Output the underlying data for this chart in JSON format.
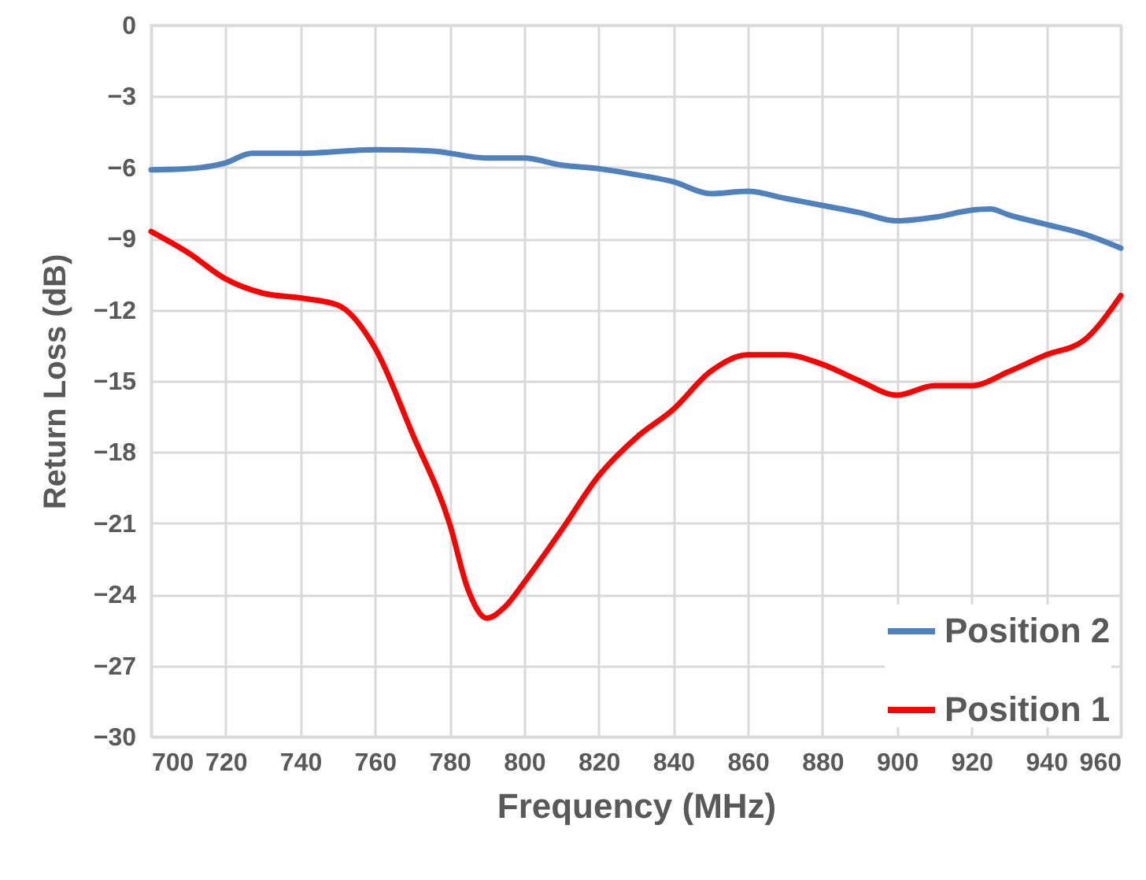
{
  "chart_data": {
    "type": "line",
    "xlabel": "Frequency (MHz)",
    "ylabel": "Return Loss (dB)",
    "xlim": [
      700,
      960
    ],
    "xticks": [
      700,
      720,
      740,
      760,
      780,
      800,
      820,
      840,
      860,
      880,
      900,
      920,
      940,
      960
    ],
    "ylim": [
      -30,
      0
    ],
    "yticks": [
      -30,
      -27,
      -24,
      -21,
      -18,
      -15,
      -12,
      -9,
      -6,
      -3,
      0
    ],
    "grid": true,
    "legend": "bottom right",
    "line_style": "solid",
    "series": [
      {
        "name": "Position 2",
        "color": "#4f81bd",
        "x": [
          700,
          710,
          720,
          727,
          740,
          760,
          775,
          790,
          800,
          810,
          820,
          830,
          840,
          850,
          860,
          870,
          880,
          890,
          900,
          910,
          920,
          925,
          930,
          940,
          950,
          960
        ],
        "values": [
          -6.1,
          -6.05,
          -5.8,
          -5.4,
          -5.4,
          -5.25,
          -5.3,
          -5.6,
          -5.6,
          -5.9,
          -6.05,
          -6.3,
          -6.6,
          -7.1,
          -7.0,
          -7.3,
          -7.6,
          -7.9,
          -8.25,
          -8.1,
          -7.8,
          -7.75,
          -8.0,
          -8.4,
          -8.8,
          -9.4
        ]
      },
      {
        "name": "Position 1",
        "color": "#ff0000",
        "x": [
          700,
          710,
          720,
          730,
          740,
          750,
          760,
          770,
          780,
          785,
          790,
          795,
          800,
          810,
          820,
          830,
          840,
          850,
          860,
          870,
          880,
          890,
          900,
          910,
          920,
          930,
          940,
          950,
          960
        ],
        "values": [
          -8.7,
          -9.6,
          -10.7,
          -11.3,
          -11.5,
          -11.8,
          -13.6,
          -17.2,
          -21.0,
          -23.8,
          -25.0,
          -24.5,
          -23.5,
          -21.3,
          -19.0,
          -17.4,
          -16.2,
          -14.6,
          -13.9,
          -13.9,
          -14.3,
          -15.0,
          -15.6,
          -15.2,
          -15.2,
          -14.6,
          -13.9,
          -13.3,
          -11.4
        ]
      }
    ]
  }
}
